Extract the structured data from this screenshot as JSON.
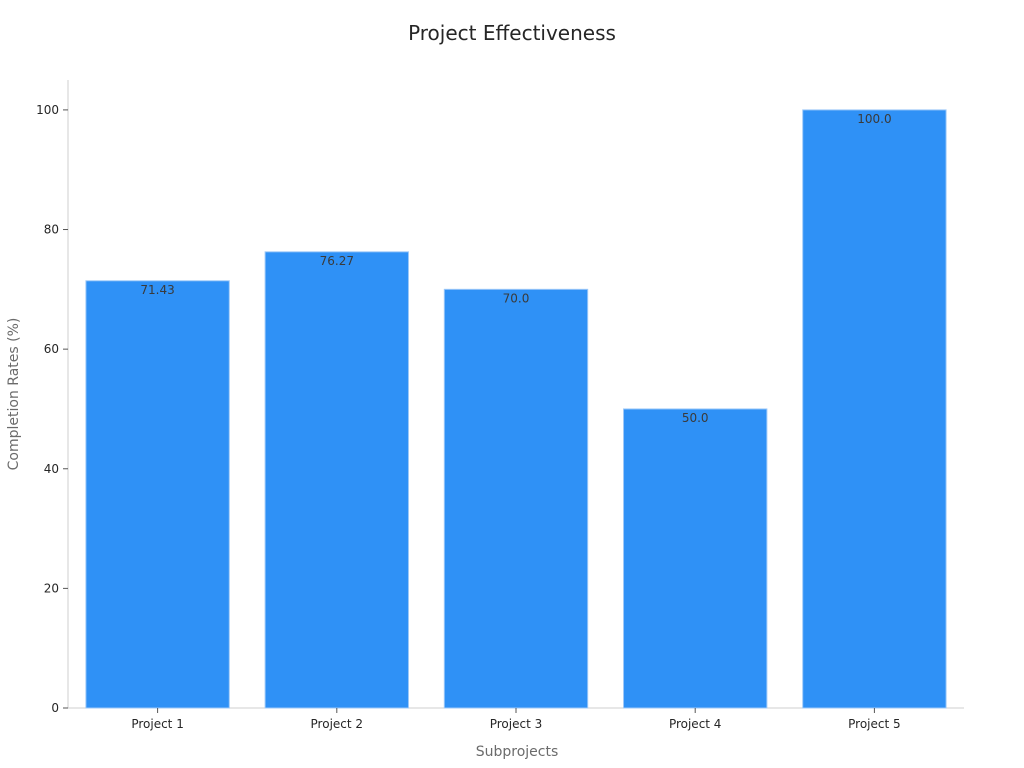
{
  "chart_data": {
    "type": "bar",
    "title": "Project Effectiveness",
    "xlabel": "Subprojects",
    "ylabel": "Completion Rates (%)",
    "categories": [
      "Project 1",
      "Project 2",
      "Project 3",
      "Project 4",
      "Project 5"
    ],
    "values": [
      71.43,
      76.27,
      70.0,
      50.0,
      100.0
    ],
    "value_labels": [
      "71.43",
      "76.27",
      "70.0",
      "50.0",
      "100.0"
    ],
    "ylim": [
      0,
      105
    ],
    "yticks": [
      0,
      20,
      40,
      60,
      80,
      100
    ],
    "grid": false,
    "legend": "none",
    "colors": {
      "bar": "#2f91f6",
      "bar_edge": "#9cc8f8"
    }
  }
}
